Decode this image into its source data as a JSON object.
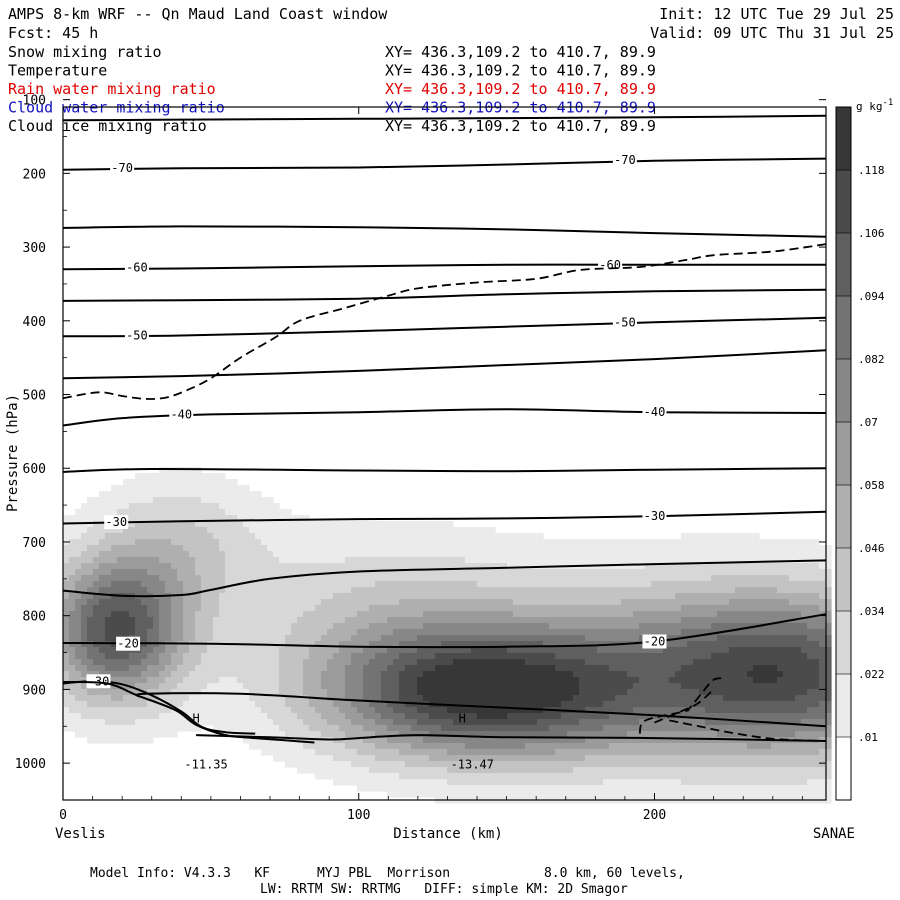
{
  "header": {
    "title": "AMPS 8-km WRF -- Qn Maud Land Coast window",
    "forecast": "Fcst:   45 h",
    "init": "Init: 12 UTC Tue 29 Jul 25",
    "valid": "Valid: 09 UTC Thu 31 Jul 25"
  },
  "fields": [
    {
      "label": "Snow mixing ratio",
      "xy": "XY= 436.3,109.2 to 410.7, 89.9",
      "color": "#000000"
    },
    {
      "label": "Temperature",
      "xy": "XY= 436.3,109.2 to 410.7, 89.9",
      "color": "#000000"
    },
    {
      "label": "Rain water mixing ratio",
      "xy": "XY= 436.3,109.2 to 410.7, 89.9",
      "color": "#e00000"
    },
    {
      "label": "Cloud water mixing ratio",
      "xy": "XY= 436.3,109.2 to 410.7, 89.9",
      "color": "#1010c0"
    },
    {
      "label": "Cloud ice mixing ratio",
      "xy": "XY= 436.3,109.2 to 410.7, 89.9",
      "color": "#000000"
    }
  ],
  "chart_data": {
    "type": "heatmap",
    "ylabel": "Pressure (hPa)",
    "xlabel": "Distance (km)",
    "x_ticks": [
      0,
      100,
      200
    ],
    "y_ticks": [
      100,
      200,
      300,
      400,
      500,
      600,
      700,
      800,
      900,
      1000
    ],
    "xlim": [
      0,
      258
    ],
    "ylim_inverted": [
      1050,
      110
    ],
    "x_end_labels": {
      "left": "Veslis",
      "right": "SANAE"
    },
    "colorbar": {
      "unit": "g kg",
      "unit_exp": "-1",
      "labels": [
        ".01",
        ".022",
        ".034",
        ".046",
        ".058",
        ".07",
        ".082",
        ".094",
        ".106",
        ".118"
      ]
    },
    "snow_blobs": [
      {
        "x": 18,
        "p": 820,
        "sx": 17,
        "sp": 70,
        "amp": 0.106
      },
      {
        "x": 40,
        "p": 700,
        "sx": 20,
        "sp": 65,
        "amp": 0.03
      },
      {
        "x": 140,
        "p": 905,
        "sx": 38,
        "sp": 65,
        "amp": 0.12
      },
      {
        "x": 110,
        "p": 790,
        "sx": 40,
        "sp": 80,
        "amp": 0.03
      },
      {
        "x": 250,
        "p": 880,
        "sx": 30,
        "sp": 80,
        "amp": 0.09
      },
      {
        "x": 205,
        "p": 870,
        "sx": 35,
        "sp": 90,
        "amp": 0.05
      }
    ],
    "temperature_isotherms": [
      {
        "points": [
          [
            0,
            128
          ],
          [
            50,
            127
          ],
          [
            100,
            126
          ],
          [
            150,
            125
          ],
          [
            200,
            124
          ],
          [
            258,
            122
          ]
        ]
      },
      {
        "points": [
          [
            0,
            195
          ],
          [
            40,
            193
          ],
          [
            100,
            192
          ],
          [
            150,
            188
          ],
          [
            200,
            183
          ],
          [
            258,
            180
          ]
        ],
        "label": "-70",
        "label_points": [
          [
            20,
            193
          ],
          [
            190,
            182
          ]
        ]
      },
      {
        "points": [
          [
            0,
            274
          ],
          [
            40,
            272
          ],
          [
            100,
            273
          ],
          [
            150,
            276
          ],
          [
            200,
            281
          ],
          [
            258,
            286
          ]
        ]
      },
      {
        "points": [
          [
            0,
            330
          ],
          [
            40,
            329
          ],
          [
            100,
            326
          ],
          [
            150,
            324
          ],
          [
            200,
            324
          ],
          [
            258,
            324
          ]
        ],
        "label": "-60",
        "label_points": [
          [
            25,
            328
          ],
          [
            185,
            324
          ]
        ]
      },
      {
        "points": [
          [
            0,
            373
          ],
          [
            40,
            372
          ],
          [
            100,
            370
          ],
          [
            150,
            364
          ],
          [
            200,
            360
          ],
          [
            258,
            358
          ]
        ]
      },
      {
        "points": [
          [
            0,
            421
          ],
          [
            40,
            420
          ],
          [
            100,
            414
          ],
          [
            150,
            408
          ],
          [
            200,
            402
          ],
          [
            258,
            396
          ]
        ],
        "label": "-50",
        "label_points": [
          [
            25,
            420
          ],
          [
            190,
            402
          ]
        ]
      },
      {
        "points": [
          [
            0,
            478
          ],
          [
            40,
            475
          ],
          [
            100,
            468
          ],
          [
            150,
            460
          ],
          [
            200,
            452
          ],
          [
            258,
            440
          ]
        ]
      },
      {
        "points": [
          [
            0,
            542
          ],
          [
            20,
            532
          ],
          [
            50,
            527
          ],
          [
            100,
            524
          ],
          [
            150,
            520
          ],
          [
            200,
            524
          ],
          [
            258,
            525
          ]
        ],
        "label": "-40",
        "label_points": [
          [
            40,
            527
          ],
          [
            200,
            524
          ]
        ]
      },
      {
        "points": [
          [
            0,
            605
          ],
          [
            30,
            601
          ],
          [
            100,
            603
          ],
          [
            150,
            604
          ],
          [
            200,
            602
          ],
          [
            258,
            600
          ]
        ]
      },
      {
        "points": [
          [
            0,
            675
          ],
          [
            40,
            672
          ],
          [
            100,
            669
          ],
          [
            150,
            668
          ],
          [
            200,
            665
          ],
          [
            258,
            659
          ]
        ],
        "label": "-30",
        "label_points": [
          [
            18,
            673
          ],
          [
            200,
            665
          ]
        ]
      },
      {
        "points": [
          [
            0,
            766
          ],
          [
            20,
            773
          ],
          [
            40,
            772
          ],
          [
            50,
            765
          ],
          [
            70,
            750
          ],
          [
            100,
            740
          ],
          [
            150,
            735
          ],
          [
            200,
            730
          ],
          [
            258,
            725
          ]
        ]
      },
      {
        "points": [
          [
            0,
            837
          ],
          [
            50,
            838
          ],
          [
            100,
            842
          ],
          [
            150,
            842
          ],
          [
            200,
            835
          ],
          [
            258,
            798
          ]
        ],
        "label": "-20",
        "label_points": [
          [
            22,
            838
          ],
          [
            200,
            835
          ]
        ]
      },
      {
        "points": [
          [
            0,
            892
          ],
          [
            10,
            889
          ],
          [
            20,
            893
          ],
          [
            30,
            908
          ],
          [
            40,
            930
          ],
          [
            47,
            951
          ],
          [
            55,
            958
          ],
          [
            65,
            960
          ]
        ],
        "label": "-30",
        "label_points": [
          [
            12,
            889
          ]
        ]
      },
      {
        "points": [
          [
            26,
            910
          ],
          [
            28,
            906
          ],
          [
            60,
            906
          ],
          [
            100,
            915
          ],
          [
            150,
            925
          ],
          [
            200,
            935
          ],
          [
            258,
            950
          ]
        ]
      },
      {
        "points": [
          [
            0,
            890
          ],
          [
            15,
            892
          ],
          [
            25,
            908
          ],
          [
            38,
            928
          ],
          [
            45,
            948
          ],
          [
            55,
            962
          ],
          [
            65,
            966
          ],
          [
            75,
            969
          ],
          [
            85,
            972
          ]
        ]
      },
      {
        "points": [
          [
            45,
            962
          ],
          [
            70,
            965
          ],
          [
            90,
            968
          ],
          [
            100,
            966
          ],
          [
            120,
            962
          ],
          [
            150,
            965
          ],
          [
            200,
            966
          ],
          [
            258,
            970
          ]
        ]
      }
    ],
    "highs": [
      {
        "x": 45,
        "p": 950,
        "mark": "H",
        "value": "-11.35"
      },
      {
        "x": 135,
        "p": 950,
        "mark": "H",
        "value": "-13.47"
      }
    ],
    "dashed_contours": [
      {
        "points": [
          [
            0,
            505
          ],
          [
            12,
            497
          ],
          [
            20,
            502
          ],
          [
            28,
            506
          ],
          [
            35,
            504
          ],
          [
            42,
            494
          ],
          [
            50,
            478
          ],
          [
            60,
            450
          ],
          [
            72,
            422
          ],
          [
            80,
            400
          ],
          [
            95,
            383
          ],
          [
            110,
            366
          ],
          [
            120,
            356
          ],
          [
            140,
            348
          ],
          [
            160,
            343
          ],
          [
            175,
            331
          ],
          [
            195,
            327
          ],
          [
            210,
            318
          ],
          [
            220,
            311
          ],
          [
            240,
            306
          ],
          [
            258,
            296
          ]
        ]
      },
      {
        "points": [
          [
            195,
            960
          ],
          [
            197,
            942
          ],
          [
            210,
            930
          ],
          [
            212,
            925
          ],
          [
            216,
            905
          ],
          [
            220,
            887
          ],
          [
            224,
            885
          ]
        ]
      },
      {
        "points": [
          [
            200,
            945
          ],
          [
            210,
            928
          ],
          [
            215,
            918
          ],
          [
            220,
            900
          ]
        ]
      },
      {
        "points": [
          [
            205,
            942
          ],
          [
            215,
            950
          ],
          [
            225,
            958
          ],
          [
            240,
            967
          ],
          [
            258,
            970
          ]
        ]
      }
    ]
  },
  "footer": {
    "line1": "Model Info: V4.3.3   KF      MYJ PBL  Morrison            8.0 km, 60 levels,",
    "line2": "LW: RRTM SW: RRTMG   DIFF: simple KM: 2D Smagor"
  }
}
